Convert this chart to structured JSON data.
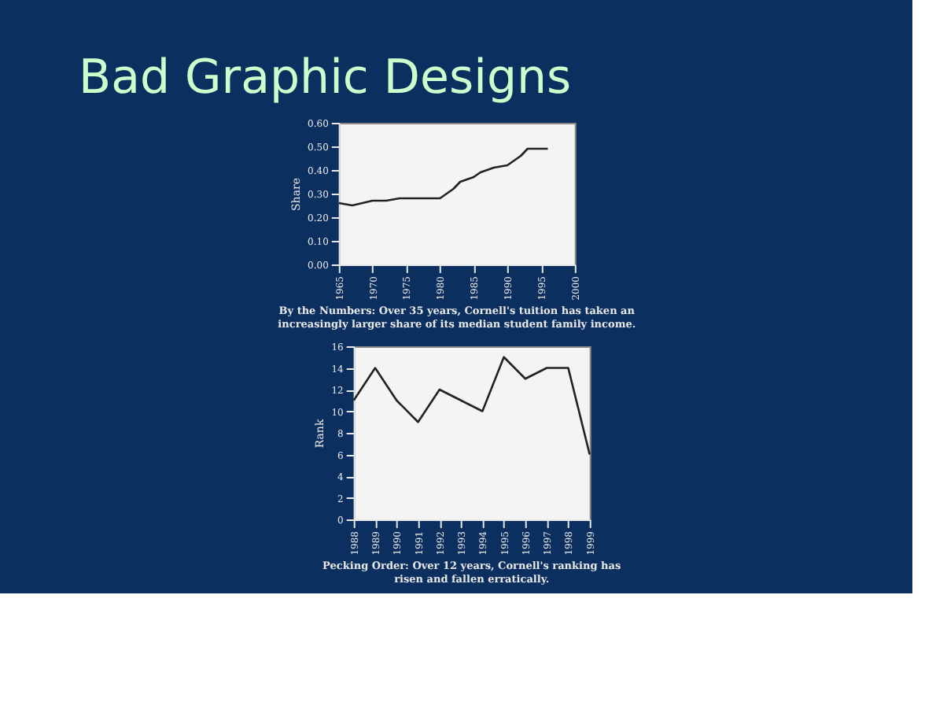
{
  "chart_data": [
    {
      "type": "line",
      "title": "Bad Graphic Designs",
      "ylabel": "Share",
      "x": [
        1965,
        1967,
        1970,
        1972,
        1974,
        1976,
        1980,
        1982,
        1983,
        1985,
        1986,
        1988,
        1990,
        1992,
        1993,
        1995,
        1996
      ],
      "series": [
        {
          "color": "#222222",
          "values": [
            0.26,
            0.25,
            0.27,
            0.27,
            0.28,
            0.28,
            0.28,
            0.32,
            0.35,
            0.37,
            0.39,
            0.41,
            0.42,
            0.46,
            0.49,
            0.49,
            0.49
          ]
        }
      ],
      "xlim": [
        1965,
        2000
      ],
      "xticks": [
        1965,
        1970,
        1975,
        1980,
        1985,
        1990,
        1995,
        2000
      ],
      "ylim": [
        0,
        0.6
      ],
      "yticks": [
        {
          "value": 0,
          "label": "0.00"
        },
        {
          "value": 0.1,
          "label": "0.10"
        },
        {
          "value": 0.2,
          "label": "0.20"
        },
        {
          "value": 0.3,
          "label": "0.30"
        },
        {
          "value": 0.4,
          "label": "0.40"
        },
        {
          "value": 0.5,
          "label": "0.50"
        },
        {
          "value": 0.6,
          "label": "0.60"
        }
      ],
      "grid": false,
      "marker": "none",
      "line_style": "solid",
      "annotations": [
        "By the Numbers: Over 35 years, Cornell's tuition has taken an",
        "increasingly larger share of its median student family income."
      ]
    },
    {
      "type": "line",
      "ylabel": "Rank",
      "x": [
        1988,
        1989,
        1990,
        1991,
        1992,
        1993,
        1994,
        1995,
        1996,
        1997,
        1998,
        1999
      ],
      "series": [
        {
          "color": "#222222",
          "values": [
            11,
            14,
            11,
            9,
            12,
            11,
            10,
            15,
            13,
            14,
            14,
            6
          ]
        }
      ],
      "xlim": [
        1988,
        1999
      ],
      "xticks": [
        1988,
        1989,
        1990,
        1991,
        1992,
        1993,
        1994,
        1995,
        1996,
        1997,
        1998,
        1999
      ],
      "ylim": [
        0,
        16
      ],
      "yticks": [
        0,
        2,
        4,
        6,
        8,
        10,
        12,
        14,
        16
      ],
      "grid": false,
      "marker": "none",
      "line_style": "solid",
      "annotations": [
        "Pecking Order: Over 12 years, Cornell's ranking has",
        "risen and fallen erratically."
      ]
    }
  ]
}
